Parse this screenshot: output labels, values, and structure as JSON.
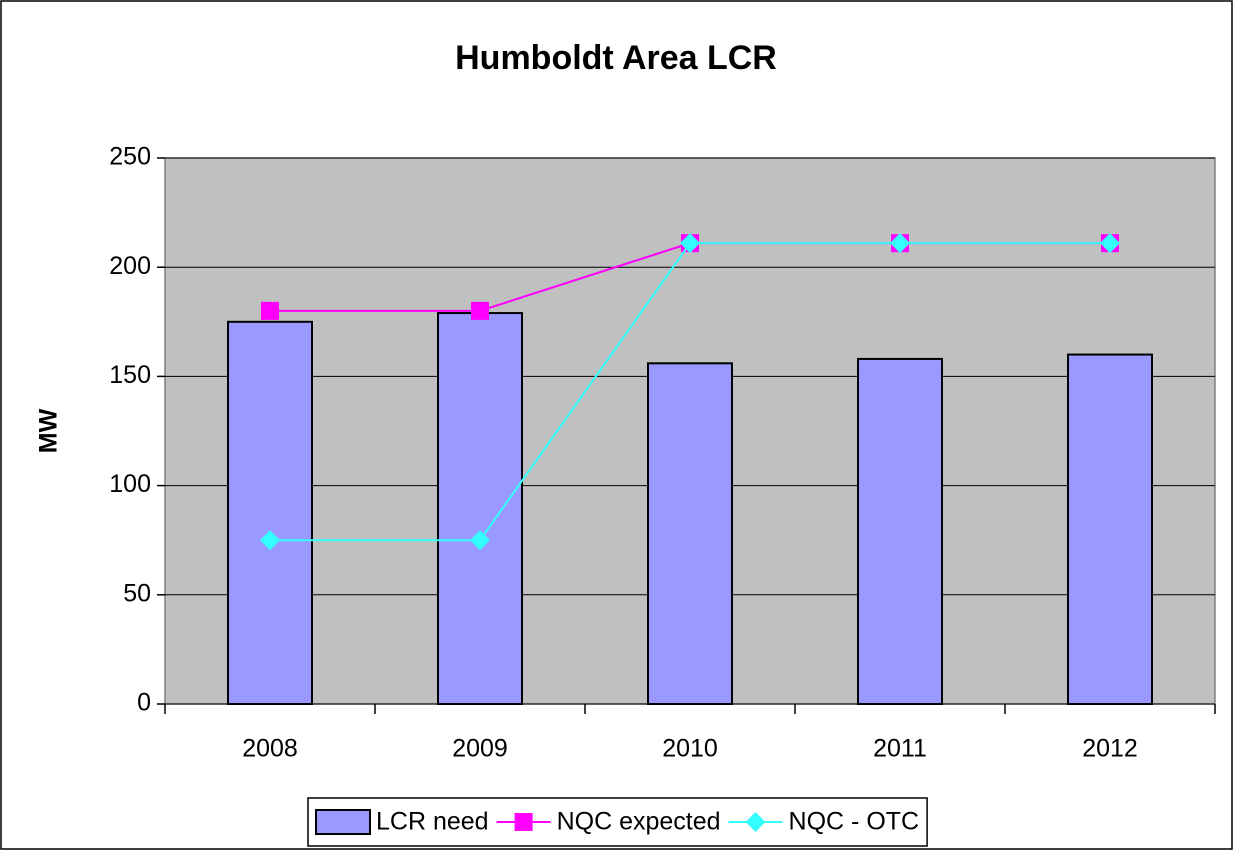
{
  "chart_data": {
    "type": "bar",
    "title": "Humboldt Area LCR",
    "y_label": "MW",
    "categories": [
      "2008",
      "2009",
      "2010",
      "2011",
      "2012"
    ],
    "series": [
      {
        "name": "LCR need",
        "type": "bar",
        "color": "#9999ff",
        "values": [
          175,
          179,
          156,
          158,
          160
        ]
      },
      {
        "name": "NQC expected",
        "type": "line",
        "marker": "square",
        "color": "#ff00ff",
        "values": [
          180,
          180,
          211,
          211,
          211
        ]
      },
      {
        "name": "NQC - OTC",
        "type": "line",
        "marker": "diamond",
        "color": "#33ffff",
        "values": [
          75,
          75,
          211,
          211,
          211
        ]
      }
    ],
    "ylim": [
      0,
      250
    ],
    "yticks": [
      0,
      50,
      100,
      150,
      200,
      250
    ],
    "grid": true,
    "legend": "bottom",
    "plot_background": "#c0c0c0"
  }
}
